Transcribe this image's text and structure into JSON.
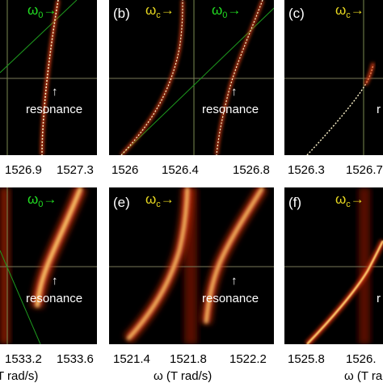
{
  "figure": {
    "colors": {
      "background": "#000000",
      "hot": "#ffe08a",
      "mid": "#e0401a",
      "dark": "#5a0a00",
      "grid_line": "#8a8a6a",
      "omega0_color": "#22dd22",
      "omegac_color": "#e8d820",
      "sharp_dots": "#fff5cc"
    },
    "x_axis_title": "ω (T rad/s)",
    "x_axis_title_partial": "T rad/s)",
    "panels": [
      {
        "id": "a",
        "label": "",
        "arrows": [
          {
            "text": "ω0→",
            "color": "green"
          }
        ],
        "resonance_text": "resonance",
        "ticks": [
          "1526.9",
          "1527.3"
        ]
      },
      {
        "id": "b",
        "label": "(b)",
        "arrows": [
          {
            "text": "ωc→",
            "color": "yellow"
          },
          {
            "text": "ω0→",
            "color": "green"
          }
        ],
        "resonance_text": "resonance",
        "ticks": [
          "1526",
          "1526.4",
          "1526.8"
        ]
      },
      {
        "id": "c",
        "label": "(c)",
        "arrows": [
          {
            "text": "ωc→",
            "color": "yellow"
          }
        ],
        "resonance_text": "r",
        "ticks": [
          "1526.3",
          "1526.7"
        ]
      },
      {
        "id": "d",
        "label": "",
        "arrows": [
          {
            "text": "ω0→",
            "color": "green"
          }
        ],
        "resonance_text": "resonance",
        "ticks": [
          "1533.2",
          "1533.6"
        ]
      },
      {
        "id": "e",
        "label": "(e)",
        "arrows": [
          {
            "text": "ωc→",
            "color": "yellow"
          }
        ],
        "resonance_text": "resonance",
        "ticks": [
          "1521.4",
          "1521.8",
          "1522.2"
        ]
      },
      {
        "id": "f",
        "label": "(f)",
        "arrows": [
          {
            "text": "ωc→",
            "color": "yellow"
          }
        ],
        "resonance_text": "r",
        "ticks": [
          "1525.8",
          "1526."
        ]
      }
    ]
  }
}
